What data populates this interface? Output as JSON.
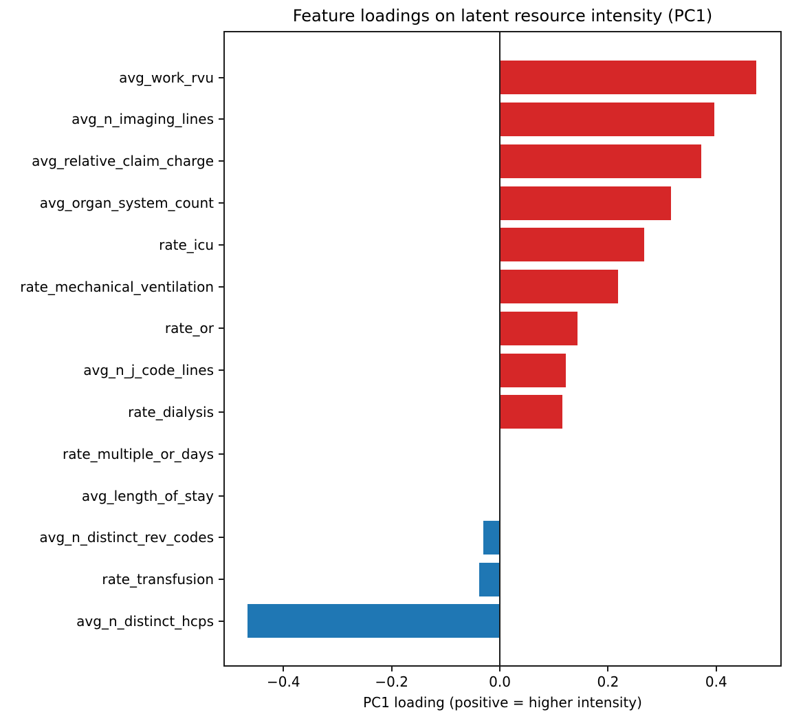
{
  "chart_data": {
    "type": "bar",
    "orientation": "horizontal",
    "title": "Feature loadings on latent resource intensity (PC1)",
    "xlabel": "PC1 loading (positive = higher intensity)",
    "ylabel": "",
    "categories": [
      "avg_work_rvu",
      "avg_n_imaging_lines",
      "avg_relative_claim_charge",
      "avg_organ_system_count",
      "rate_icu",
      "rate_mechanical_ventilation",
      "rate_or",
      "avg_n_j_code_lines",
      "rate_dialysis",
      "rate_multiple_or_days",
      "avg_length_of_stay",
      "avg_n_distinct_rev_codes",
      "rate_transfusion",
      "avg_n_distinct_hcps"
    ],
    "values": [
      0.474,
      0.397,
      0.372,
      0.317,
      0.267,
      0.218,
      0.144,
      0.122,
      0.116,
      0.0,
      0.0,
      -0.03,
      -0.038,
      -0.467
    ],
    "colors": [
      "#d62728",
      "#d62728",
      "#d62728",
      "#d62728",
      "#d62728",
      "#d62728",
      "#d62728",
      "#d62728",
      "#d62728",
      "#d62728",
      "#1f77b4",
      "#1f77b4",
      "#1f77b4",
      "#1f77b4"
    ],
    "positive_color": "#d62728",
    "negative_color": "#1f77b4",
    "axis_color": "#1c1c1c",
    "xlim": [
      -0.511,
      0.521
    ],
    "xticks": [
      -0.4,
      -0.2,
      0.0,
      0.2,
      0.4
    ],
    "xtick_labels": [
      "−0.4",
      "−0.2",
      "0.0",
      "0.2",
      "0.4"
    ],
    "grid": false,
    "zero_line": true,
    "legend": null
  }
}
